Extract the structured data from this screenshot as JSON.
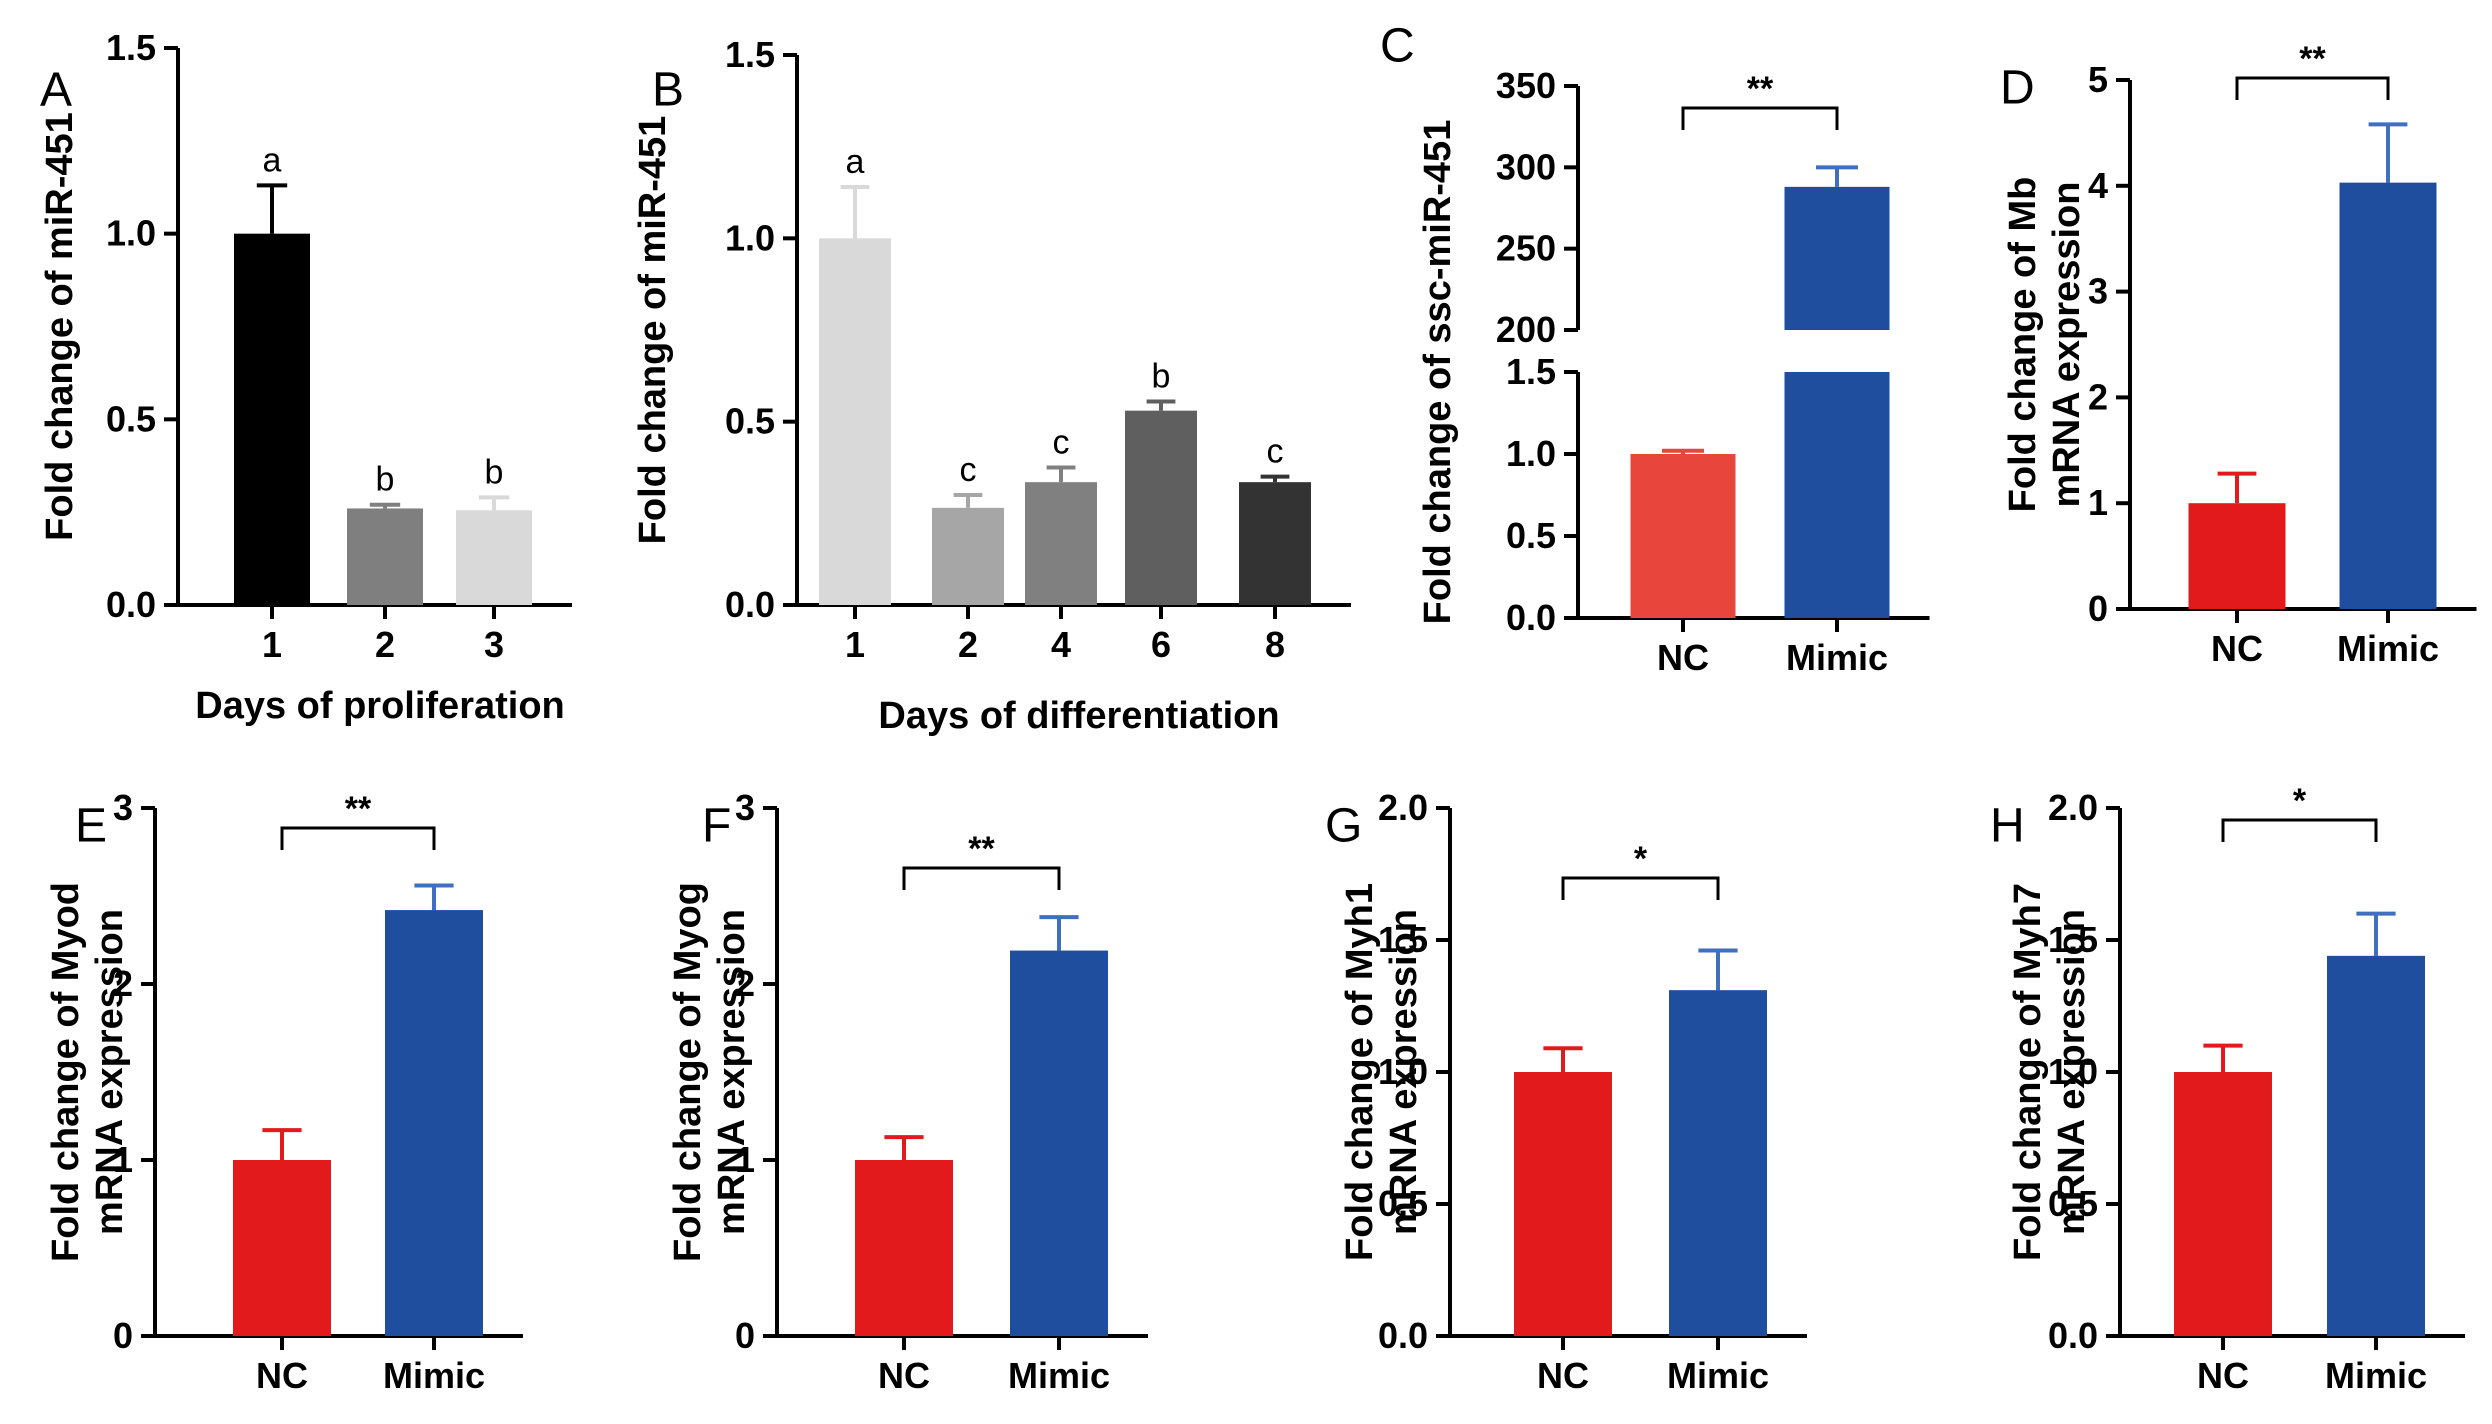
{
  "chart_data": [
    {
      "panel": "A",
      "type": "bar",
      "ylabel": "Fold change of miR-451",
      "xlabel": "Days of proliferation",
      "categories": [
        "1",
        "2",
        "3"
      ],
      "values": [
        1.0,
        0.26,
        0.255
      ],
      "errors": [
        0.13,
        0.01,
        0.035
      ],
      "colors": [
        "#000000",
        "#7f7f7f",
        "#d9d9d9"
      ],
      "error_colors": [
        "#000000",
        "#7f7f7f",
        "#d9d9d9"
      ],
      "letters": [
        "a",
        "b",
        "b"
      ],
      "ylim": [
        0,
        1.5
      ],
      "yticks": [
        "0.0",
        "0.5",
        "1.0",
        "1.5"
      ]
    },
    {
      "panel": "B",
      "type": "bar",
      "ylabel": "Fold change of miR-451",
      "xlabel": "Days of differentiation",
      "categories": [
        "1",
        "2",
        "4",
        "6",
        "8"
      ],
      "values": [
        1.0,
        0.265,
        0.335,
        0.53,
        0.335
      ],
      "errors": [
        0.14,
        0.035,
        0.04,
        0.025,
        0.015
      ],
      "colors": [
        "#d9d9d9",
        "#a6a6a6",
        "#808080",
        "#5f5f5f",
        "#333333"
      ],
      "error_colors": [
        "#d9d9d9",
        "#a6a6a6",
        "#808080",
        "#5f5f5f",
        "#333333"
      ],
      "letters": [
        "a",
        "c",
        "c",
        "b",
        "c"
      ],
      "ylim": [
        0,
        1.5
      ],
      "yticks": [
        "0.0",
        "0.5",
        "1.0",
        "1.5"
      ]
    },
    {
      "panel": "C",
      "type": "bar",
      "broken_axis": true,
      "ylabel": "Fold change of ssc-miR-451",
      "xlabel": "",
      "categories": [
        "NC",
        "Mimic"
      ],
      "values": [
        1.0,
        288
      ],
      "errors": [
        0.02,
        12
      ],
      "colors": [
        "#e8453c",
        "#1f4e9e"
      ],
      "error_colors": [
        "#e8453c",
        "#3f6fbf"
      ],
      "lower_ylim": [
        0,
        1.5
      ],
      "lower_yticks": [
        "0.0",
        "0.5",
        "1.0",
        "1.5"
      ],
      "upper_ylim": [
        200,
        350
      ],
      "upper_yticks": [
        "200",
        "250",
        "300",
        "350"
      ],
      "significance": "**"
    },
    {
      "panel": "D",
      "type": "bar",
      "ylabel": [
        "Fold change of Mb",
        "mRNA expression"
      ],
      "xlabel": "",
      "categories": [
        "NC",
        "Mimic"
      ],
      "values": [
        1.0,
        4.03
      ],
      "errors": [
        0.28,
        0.55
      ],
      "colors": [
        "#e31a1c",
        "#1f4e9e"
      ],
      "error_colors": [
        "#e31a1c",
        "#3f6fbf"
      ],
      "ylim": [
        0,
        5
      ],
      "yticks": [
        "0",
        "1",
        "2",
        "3",
        "4",
        "5"
      ],
      "significance": "**"
    },
    {
      "panel": "E",
      "type": "bar",
      "ylabel": [
        "Fold change of Myod",
        "mRNA expression"
      ],
      "xlabel": "",
      "categories": [
        "NC",
        "Mimic"
      ],
      "values": [
        1.0,
        2.42
      ],
      "errors": [
        0.17,
        0.14
      ],
      "colors": [
        "#e31a1c",
        "#1f4e9e"
      ],
      "error_colors": [
        "#e31a1c",
        "#3f6fbf"
      ],
      "ylim": [
        0,
        3
      ],
      "yticks": [
        "0",
        "1",
        "2",
        "3"
      ],
      "significance": "**"
    },
    {
      "panel": "F",
      "type": "bar",
      "ylabel": [
        "Fold change of Myog",
        "mRNA expression"
      ],
      "xlabel": "",
      "categories": [
        "NC",
        "Mimic"
      ],
      "values": [
        1.0,
        2.19
      ],
      "errors": [
        0.13,
        0.19
      ],
      "colors": [
        "#e31a1c",
        "#1f4e9e"
      ],
      "error_colors": [
        "#e31a1c",
        "#3f6fbf"
      ],
      "ylim": [
        0,
        3
      ],
      "yticks": [
        "0",
        "1",
        "2",
        "3"
      ],
      "significance": "**"
    },
    {
      "panel": "G",
      "type": "bar",
      "ylabel": [
        "Fold change of Myh1",
        "mRNA expression"
      ],
      "xlabel": "",
      "categories": [
        "NC",
        "Mimic"
      ],
      "values": [
        1.0,
        1.31
      ],
      "errors": [
        0.09,
        0.15
      ],
      "colors": [
        "#e31a1c",
        "#1f4e9e"
      ],
      "error_colors": [
        "#e31a1c",
        "#3f6fbf"
      ],
      "ylim": [
        0,
        2.0
      ],
      "yticks": [
        "0.0",
        "0.5",
        "1.0",
        "1.5",
        "2.0"
      ],
      "significance": "*"
    },
    {
      "panel": "H",
      "type": "bar",
      "ylabel": [
        "Fold change of Myh7",
        "mRNA expression"
      ],
      "xlabel": "",
      "categories": [
        "NC",
        "Mimic"
      ],
      "values": [
        1.0,
        1.44
      ],
      "errors": [
        0.1,
        0.16
      ],
      "colors": [
        "#e31a1c",
        "#1f4e9e"
      ],
      "error_colors": [
        "#e31a1c",
        "#3f6fbf"
      ],
      "ylim": [
        0,
        2.0
      ],
      "yticks": [
        "0.0",
        "0.5",
        "1.0",
        "1.5",
        "2.0"
      ],
      "significance": "*"
    }
  ]
}
